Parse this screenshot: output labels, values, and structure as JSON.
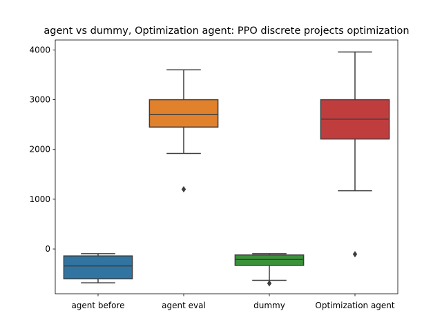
{
  "chart_data": {
    "type": "box",
    "title": "agent vs dummy, Optimization agent: PPO discrete projects optimization",
    "xlabel": "",
    "ylabel": "",
    "ylim": [
      -900,
      4200
    ],
    "yticks": [
      0,
      1000,
      2000,
      3000,
      4000
    ],
    "categories": [
      "agent before",
      "agent eval",
      "dummy",
      "Optimization agent"
    ],
    "boxes": [
      {
        "name": "agent before",
        "color": "#3274a1",
        "whisker_low": -680,
        "q1": -600,
        "median": -340,
        "q3": -140,
        "whisker_high": -95,
        "outliers": []
      },
      {
        "name": "agent eval",
        "color": "#e1812c",
        "whisker_low": 1920,
        "q1": 2450,
        "median": 2700,
        "q3": 3000,
        "whisker_high": 3600,
        "outliers": [
          1200
        ]
      },
      {
        "name": "dummy",
        "color": "#3a923a",
        "whisker_low": -630,
        "q1": -330,
        "median": -210,
        "q3": -120,
        "whisker_high": -95,
        "outliers": [
          -690
        ]
      },
      {
        "name": "Optimization agent",
        "color": "#c03d3e",
        "whisker_low": 1170,
        "q1": 2210,
        "median": 2610,
        "q3": 3000,
        "whisker_high": 3960,
        "outliers": [
          -105
        ]
      }
    ],
    "grid": false,
    "legend": "none"
  }
}
